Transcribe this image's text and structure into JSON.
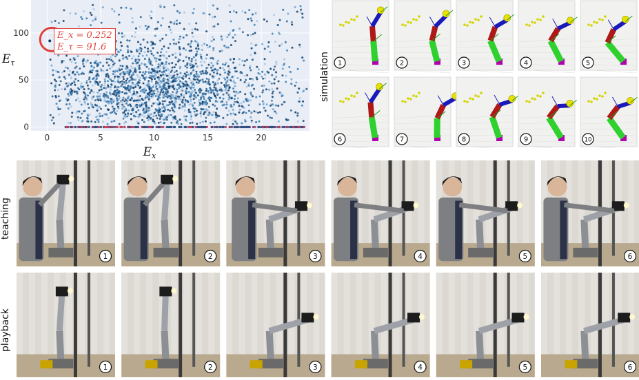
{
  "chart_data": {
    "type": "scatter",
    "xlabel": "E_x",
    "ylabel": "E_τ",
    "xlim": [
      -1.5,
      24.5
    ],
    "ylim": [
      -4,
      135
    ],
    "xticks": [
      0,
      5,
      10,
      15,
      20
    ],
    "yticks": [
      0,
      50,
      100
    ],
    "grid": true,
    "highlight": {
      "x": 0.252,
      "y": 91.6,
      "label_x": "E_x = 0.252",
      "label_y": "E_τ = 91.6"
    },
    "points_description_counts": {
      "scatter": 2200,
      "baseline": 240
    }
  },
  "rows": {
    "simulation": "simulation",
    "teaching": "teaching",
    "playback": "playback"
  },
  "sim_numbers": [
    "1",
    "2",
    "3",
    "4",
    "5",
    "6",
    "7",
    "8",
    "9",
    "10"
  ],
  "photo_numbers": [
    "1",
    "2",
    "3",
    "4",
    "5",
    "6"
  ],
  "colors": {
    "accent": "#e0403a",
    "scatter": "#1f4e79"
  }
}
